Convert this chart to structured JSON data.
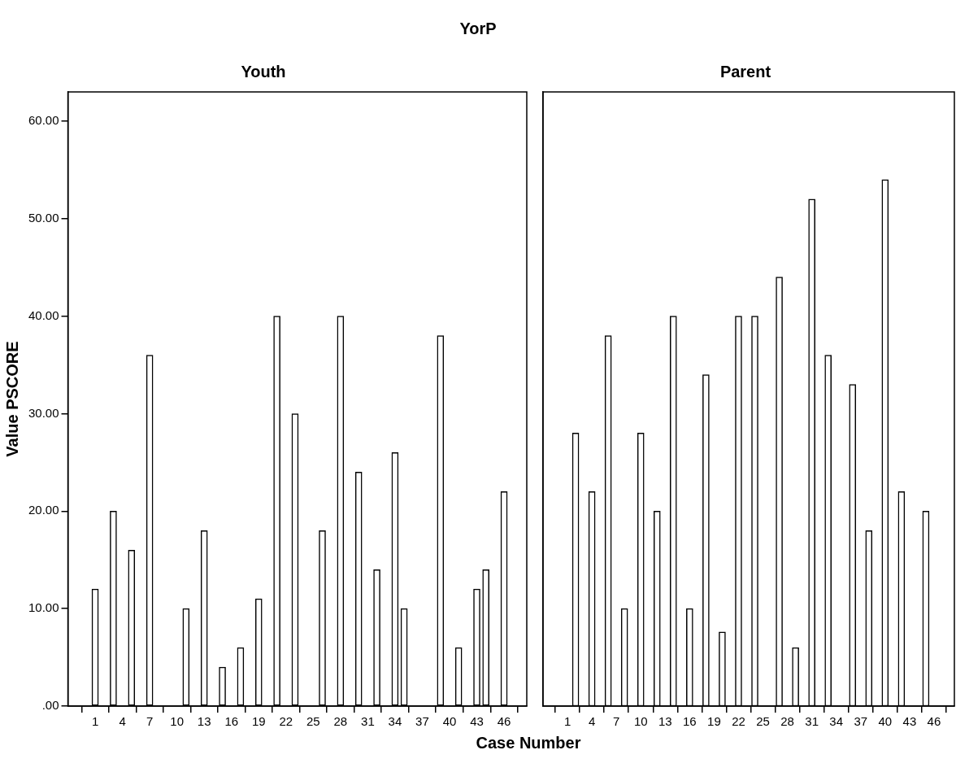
{
  "chart_data": [
    {
      "type": "bar",
      "title": "Youth",
      "ylabel": "Value PSCORE",
      "xlabel": "Case Number",
      "annotations": [
        "YorP"
      ],
      "x": [
        1,
        3,
        5,
        7,
        11,
        13,
        15,
        17,
        19,
        21,
        23,
        26,
        28,
        30,
        32,
        34,
        35,
        39,
        41,
        43,
        44,
        46
      ],
      "series": [
        {
          "color": "#ffffff",
          "values": [
            12,
            20,
            16,
            36,
            10,
            18,
            4,
            6,
            11,
            40,
            30,
            18,
            40,
            24,
            14,
            26,
            10,
            38,
            6,
            12,
            14,
            22
          ]
        }
      ],
      "xlim": [
        -2,
        48.5
      ],
      "xticks": [
        1,
        4,
        7,
        10,
        13,
        16,
        19,
        22,
        25,
        28,
        31,
        34,
        37,
        40,
        43,
        46
      ],
      "ylim": [
        0,
        63
      ],
      "yticks": [
        {
          "value": 0,
          "label": ".00"
        },
        {
          "value": 10,
          "label": "10.00"
        },
        {
          "value": 20,
          "label": "20.00"
        },
        {
          "value": 30,
          "label": "30.00"
        },
        {
          "value": 40,
          "label": "40.00"
        },
        {
          "value": 50,
          "label": "50.00"
        },
        {
          "value": 60,
          "label": "60.00"
        }
      ]
    },
    {
      "type": "bar",
      "title": "Parent",
      "tick_labels": "x",
      "x": [
        2,
        4,
        6,
        8,
        10,
        12,
        14,
        16,
        18,
        20,
        22,
        24,
        27,
        29,
        31,
        33,
        36,
        38,
        40,
        42,
        45
      ],
      "series": [
        {
          "color": "#ffffff",
          "values": [
            28,
            22,
            38,
            10,
            28,
            20,
            40,
            10,
            34,
            7.6,
            40,
            40,
            44,
            6,
            52,
            36,
            33,
            18,
            54,
            22,
            20
          ]
        }
      ],
      "xlim": [
        -2,
        48.5
      ],
      "xticks": [
        1,
        4,
        7,
        10,
        13,
        16,
        19,
        22,
        25,
        28,
        31,
        34,
        37,
        40,
        43,
        46
      ],
      "ylim": [
        0,
        63
      ]
    }
  ]
}
